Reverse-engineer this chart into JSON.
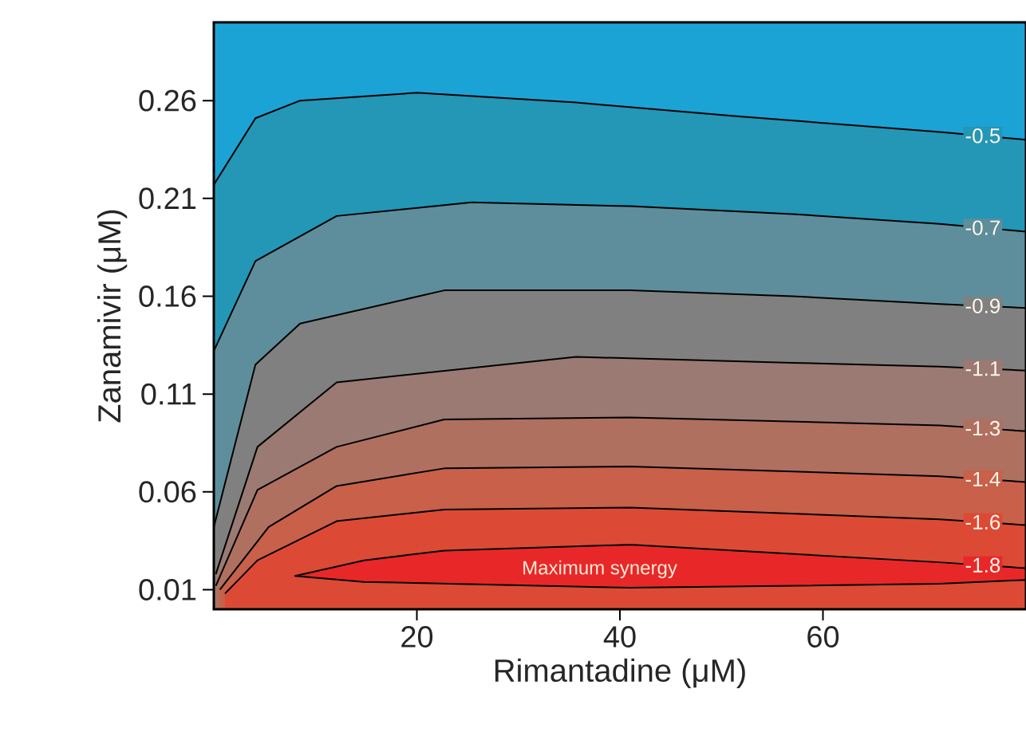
{
  "chart_data": {
    "type": "area",
    "xlabel": "Rimantadine (μM)",
    "ylabel": "Zanamivir (μM)",
    "xlim": [
      0,
      80
    ],
    "ylim": [
      0,
      0.3
    ],
    "xticks": [
      20,
      40,
      60
    ],
    "yticks": [
      0.01,
      0.06,
      0.11,
      0.16,
      0.21,
      0.26
    ],
    "bands": [
      {
        "axis": "y",
        "from": 0,
        "to": 0.3,
        "color": "#1ba3d6"
      }
    ],
    "annotations": [
      "Maximum synergy"
    ],
    "series": [
      {
        "name": "-0.5",
        "color": "#2496b6",
        "x": [
          0,
          4.1,
          8.5,
          20,
          35.7,
          51.5,
          71.5,
          80
        ],
        "values": [
          0.217,
          0.251,
          0.26,
          0.264,
          0.259,
          0.252,
          0.244,
          0.24
        ]
      },
      {
        "name": "-0.7",
        "color": "#5e8e9b",
        "x": [
          0,
          4.1,
          12.1,
          25.4,
          41,
          57,
          71.5,
          80
        ],
        "values": [
          0.132,
          0.178,
          0.201,
          0.208,
          0.206,
          0.202,
          0.197,
          0.193
        ]
      },
      {
        "name": "-0.9",
        "color": "#808080",
        "x": [
          0,
          4.1,
          8.5,
          22.7,
          41,
          57,
          71.5,
          80
        ],
        "values": [
          0.042,
          0.125,
          0.146,
          0.163,
          0.163,
          0.16,
          0.156,
          0.154
        ]
      },
      {
        "name": "-1.1",
        "color": "#9a7a72",
        "x": [
          0.2,
          4.3,
          12.1,
          35.7,
          57,
          71.5,
          80
        ],
        "values": [
          0.018,
          0.083,
          0.116,
          0.129,
          0.126,
          0.124,
          0.122
        ]
      },
      {
        "name": "-1.3",
        "color": "#b0705f",
        "x": [
          0.2,
          4.3,
          12.1,
          22.7,
          41,
          71.5,
          80
        ],
        "values": [
          0.012,
          0.061,
          0.083,
          0.097,
          0.098,
          0.094,
          0.091
        ]
      },
      {
        "name": "-1.4",
        "color": "#c8604a",
        "x": [
          0.6,
          5.4,
          12.1,
          22.7,
          41,
          71.5,
          80
        ],
        "values": [
          0.01,
          0.042,
          0.063,
          0.072,
          0.073,
          0.068,
          0.065
        ]
      },
      {
        "name": "-1.6",
        "color": "#dc4a35",
        "x": [
          1.1,
          4.3,
          12.1,
          22.7,
          41,
          71.5,
          80
        ],
        "values": [
          0.008,
          0.025,
          0.045,
          0.051,
          0.052,
          0.046,
          0.043
        ]
      },
      {
        "name": "-1.8",
        "color": "#e82828",
        "x": [
          80,
          71.5,
          41,
          22.7,
          14.8,
          8,
          14.8,
          41,
          71.5,
          80
        ],
        "values": [
          0.021,
          0.024,
          0.033,
          0.03,
          0.025,
          0.017,
          0.014,
          0.011,
          0.013,
          0.015
        ]
      }
    ]
  }
}
